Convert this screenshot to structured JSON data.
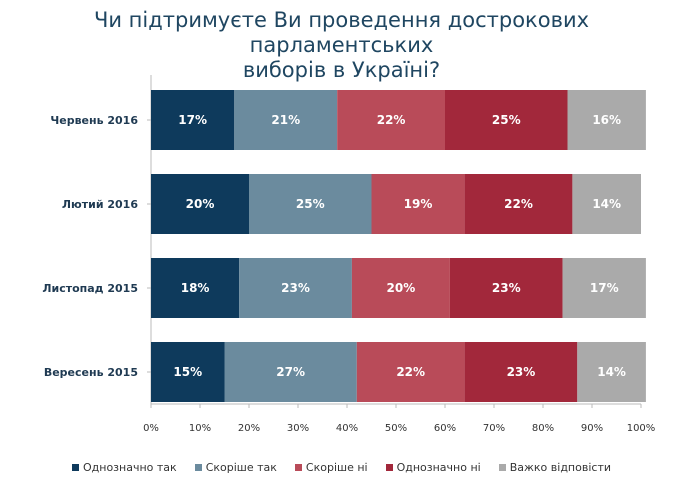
{
  "chart_data": {
    "type": "bar",
    "orientation": "horizontal",
    "stacked": true,
    "title": "Чи підтримуєте Ви проведення дострокових парламентських виборів в Україні?",
    "title_lines": [
      "Чи підтримуєте Ви проведення дострокових парламентських",
      "виборів в Україні?"
    ],
    "categories": [
      "Червень 2016",
      "Лютий 2016",
      "Листопад 2015",
      "Вересень 2015"
    ],
    "series": [
      {
        "name": "Однозначно так",
        "color": "#0e3a5c",
        "values": [
          17,
          20,
          18,
          15
        ]
      },
      {
        "name": "Скоріше так",
        "color": "#6b8b9e",
        "values": [
          21,
          25,
          23,
          27
        ]
      },
      {
        "name": "Скоріше ні",
        "color": "#b94b59",
        "values": [
          22,
          19,
          20,
          22
        ]
      },
      {
        "name": "Однозначно ні",
        "color": "#a2283b",
        "values": [
          25,
          22,
          23,
          23
        ]
      },
      {
        "name": "Важко відповісти",
        "color": "#aaaaaa",
        "values": [
          16,
          14,
          17,
          14
        ]
      }
    ],
    "xlim": [
      0,
      100
    ],
    "x_ticks": [
      "0%",
      "10%",
      "20%",
      "30%",
      "40%",
      "50%",
      "60%",
      "70%",
      "80%",
      "90%",
      "100%"
    ],
    "value_suffix": "%",
    "legend_position": "bottom",
    "grid": false
  }
}
